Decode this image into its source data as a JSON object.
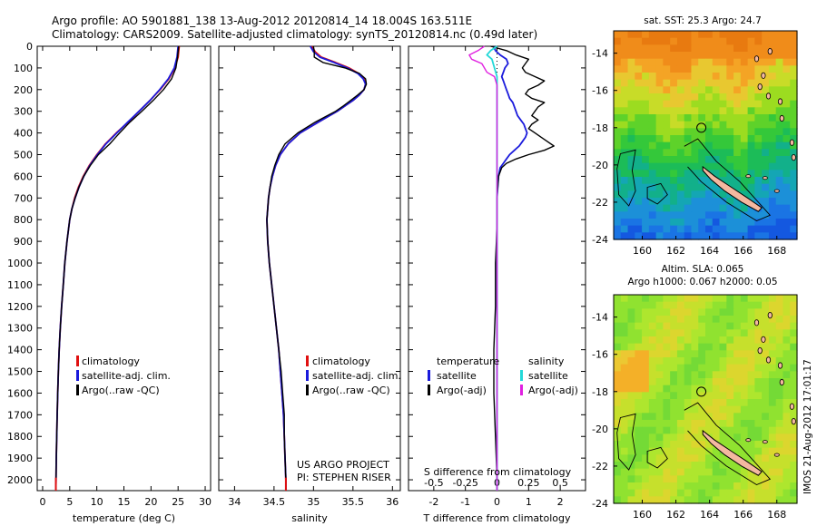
{
  "title": {
    "line1": "Argo profile: AO 5901881_138 13-Aug-2012 20120814_14 18.004S 163.511E",
    "line2": "Climatology: CARS2009. Satellite-adjusted climatology: synTS_20120814.nc (0.49d later)"
  },
  "side_stamp": "IMOS 21-Aug-2012 17:01:17",
  "credit": {
    "line1": "US ARGO PROJECT",
    "line2": "PI: STEPHEN RISER"
  },
  "colors": {
    "climatology": "#e01010",
    "satellite": "#1a1adc",
    "argo": "#000000",
    "cyan": "#22d8d8",
    "magenta": "#e020e0"
  },
  "chart_data": [
    {
      "type": "line",
      "panel": "temperature",
      "xlabel": "temperature (deg C)",
      "ylabel": "",
      "xlim": [
        -1,
        31
      ],
      "ylim": [
        2050,
        0
      ],
      "xticks": [
        0,
        5,
        10,
        15,
        20,
        25,
        30
      ],
      "yticks": [
        0,
        100,
        200,
        300,
        400,
        500,
        600,
        700,
        800,
        900,
        1000,
        1100,
        1200,
        1300,
        1400,
        1500,
        1600,
        1700,
        1800,
        1900,
        2000
      ],
      "y": [
        0,
        50,
        100,
        150,
        200,
        250,
        300,
        350,
        400,
        450,
        500,
        550,
        600,
        650,
        700,
        750,
        800,
        900,
        1000,
        1100,
        1200,
        1300,
        1400,
        1500,
        1600,
        1700,
        1800,
        1900,
        2000,
        2050
      ],
      "legend": [
        "climatology",
        "satellite-adj. clim.",
        "Argo(..raw -QC)"
      ],
      "series": [
        {
          "name": "climatology",
          "values": [
            25.2,
            25.0,
            24.4,
            23.3,
            21.7,
            19.8,
            17.8,
            15.8,
            13.6,
            11.6,
            10.0,
            8.6,
            7.5,
            6.6,
            5.9,
            5.4,
            5.0,
            4.5,
            4.1,
            3.8,
            3.5,
            3.25,
            3.05,
            2.9,
            2.78,
            2.68,
            2.6,
            2.52,
            2.46,
            2.44
          ]
        },
        {
          "name": "satellite-adj. clim.",
          "values": [
            25.0,
            24.8,
            24.3,
            23.2,
            21.6,
            19.8,
            17.8,
            15.7,
            13.7,
            11.7,
            10.1,
            8.7,
            7.6,
            6.7,
            6.0,
            5.4,
            5.0,
            4.5,
            4.1,
            3.8,
            3.5,
            3.25,
            3.05,
            2.9,
            2.78,
            2.68,
            2.6,
            2.52,
            2.46,
            2.44
          ]
        },
        {
          "name": "Argo(..raw -QC)",
          "values": [
            25.1,
            24.9,
            24.6,
            23.8,
            22.3,
            20.4,
            18.3,
            16.1,
            14.2,
            12.4,
            10.3,
            8.8,
            7.6,
            6.7,
            6.0,
            5.4,
            5.0,
            4.5,
            4.1,
            3.8,
            3.5,
            3.25,
            3.05,
            2.9,
            2.78,
            2.68,
            2.6,
            2.52,
            2.46,
            2.44
          ]
        }
      ]
    },
    {
      "type": "line",
      "panel": "salinity",
      "xlabel": "salinity",
      "ylabel": "",
      "xlim": [
        33.8,
        36.1
      ],
      "ylim": [
        2050,
        0
      ],
      "xticks": [
        34,
        34.5,
        35,
        35.5,
        36
      ],
      "y": [
        0,
        25,
        50,
        75,
        100,
        125,
        150,
        175,
        200,
        225,
        250,
        275,
        300,
        350,
        400,
        450,
        500,
        550,
        600,
        650,
        700,
        800,
        900,
        1000,
        1100,
        1200,
        1300,
        1400,
        1500,
        1600,
        1700,
        1800,
        1900,
        2000,
        2050
      ],
      "legend": [
        "climatology",
        "satellite-adj. clim.",
        "Argo(..raw -QC)"
      ],
      "series": [
        {
          "name": "climatology",
          "values": [
            34.98,
            35.02,
            35.1,
            35.28,
            35.45,
            35.57,
            35.64,
            35.66,
            35.64,
            35.58,
            35.5,
            35.4,
            35.3,
            35.06,
            34.83,
            34.68,
            34.58,
            34.52,
            34.48,
            34.45,
            34.43,
            34.41,
            34.42,
            34.44,
            34.47,
            34.5,
            34.53,
            34.56,
            34.58,
            34.6,
            34.62,
            34.63,
            34.64,
            34.65,
            34.65
          ]
        },
        {
          "name": "satellite-adj. clim.",
          "values": [
            34.96,
            35.0,
            35.08,
            35.26,
            35.43,
            35.56,
            35.63,
            35.66,
            35.64,
            35.58,
            35.5,
            35.4,
            35.3,
            35.06,
            34.83,
            34.68,
            34.58,
            34.52,
            34.48,
            34.45,
            34.43,
            34.41,
            34.42,
            34.44,
            34.47,
            34.5,
            34.53,
            34.56,
            34.58,
            34.6,
            34.62,
            34.63,
            34.64,
            34.65,
            34.65
          ]
        },
        {
          "name": "Argo(..raw -QC)",
          "values": [
            35.0,
            35.01,
            35.01,
            35.12,
            35.4,
            35.58,
            35.66,
            35.67,
            35.64,
            35.56,
            35.47,
            35.38,
            35.28,
            35.02,
            34.8,
            34.64,
            34.56,
            34.51,
            34.47,
            34.45,
            34.43,
            34.41,
            34.42,
            34.44,
            34.47,
            34.5,
            34.53,
            34.56,
            34.59,
            34.61,
            34.63,
            34.63,
            34.64,
            34.65,
            34.65
          ]
        }
      ]
    },
    {
      "type": "line",
      "panel": "differences",
      "xlabel": "T difference from climatology",
      "xlabel2": "S difference from climatology",
      "xlim": [
        -2.8,
        2.8
      ],
      "ylim": [
        2050,
        0
      ],
      "xticks": [
        -2,
        -1,
        0,
        1,
        2
      ],
      "xticks_top": [
        -0.5,
        -0.25,
        0,
        0.25,
        0.5
      ],
      "xtick_labels_top": [
        "-0.5",
        "-0.25",
        "0",
        "0.25",
        "0.5"
      ],
      "legend_titles": [
        "temperature",
        "salinity"
      ],
      "legend": [
        "satellite",
        "Argo(-adj)",
        "satellite",
        "Argo(-adj)"
      ],
      "y": [
        0,
        20,
        40,
        60,
        80,
        100,
        120,
        140,
        160,
        180,
        200,
        220,
        240,
        260,
        280,
        300,
        320,
        340,
        360,
        380,
        400,
        420,
        440,
        460,
        480,
        500,
        520,
        540,
        560,
        600,
        700,
        800,
        900,
        1000,
        1200,
        1400,
        1600,
        1800,
        2000,
        2050
      ],
      "series": [
        {
          "name": "satellite",
          "group": "temperature",
          "values": [
            -0.1,
            -0.05,
            0.1,
            0.3,
            0.35,
            0.25,
            0.2,
            0.15,
            0.2,
            0.25,
            0.3,
            0.35,
            0.4,
            0.5,
            0.55,
            0.6,
            0.65,
            0.75,
            0.85,
            0.9,
            0.95,
            0.9,
            0.8,
            0.7,
            0.55,
            0.4,
            0.3,
            0.2,
            0.1,
            0.05,
            0.0,
            0.0,
            0.0,
            0.0,
            0.0,
            0.0,
            0.0,
            0.0,
            0.0,
            0.0
          ]
        },
        {
          "name": "Argo(-adj)",
          "group": "temperature",
          "values": [
            -0.2,
            0.3,
            0.6,
            1.0,
            0.9,
            0.8,
            0.9,
            1.2,
            1.5,
            1.3,
            1.0,
            0.9,
            1.1,
            1.5,
            1.3,
            1.2,
            1.1,
            1.3,
            1.1,
            1.0,
            1.2,
            1.4,
            1.6,
            1.8,
            1.5,
            1.0,
            0.6,
            0.3,
            0.15,
            0.05,
            0.0,
            0.0,
            -0.02,
            -0.05,
            -0.05,
            -0.1,
            -0.1,
            -0.05,
            0.0,
            0.0
          ]
        },
        {
          "name": "satellite",
          "group": "salinity",
          "values": [
            0.0,
            -0.05,
            -0.08,
            -0.04,
            -0.03,
            -0.02,
            -0.01,
            0.0,
            0.0,
            0.0,
            0.0,
            0.0,
            0.0,
            0.0,
            0.0,
            0.0,
            0.0,
            0.0,
            0.0,
            0.0,
            0.0,
            0.0,
            0.0,
            0.0,
            0.0,
            0.0,
            0.0,
            0.0,
            0.0,
            0.0,
            0.0,
            0.0,
            0.0,
            0.0,
            0.0,
            0.0,
            0.0,
            0.0,
            0.0,
            0.0
          ]
        },
        {
          "name": "Argo(-adj)",
          "group": "salinity",
          "values": [
            -0.1,
            -0.15,
            -0.22,
            -0.2,
            -0.12,
            -0.1,
            -0.08,
            -0.02,
            -0.01,
            0.0,
            0.0,
            0.0,
            0.0,
            0.0,
            0.0,
            0.0,
            0.0,
            0.0,
            0.0,
            0.0,
            0.0,
            0.0,
            0.0,
            0.0,
            0.0,
            0.0,
            0.0,
            0.0,
            0.0,
            0.0,
            0.0,
            0.0,
            0.0,
            0.0,
            0.0,
            0.0,
            0.0,
            0.0,
            0.0,
            0.0
          ]
        }
      ]
    },
    {
      "type": "heatmap",
      "panel": "sst_map",
      "title": "sat. SST: 25.3  Argo: 24.7",
      "xlim": [
        158.3,
        169.2
      ],
      "ylim": [
        -24,
        -12.8
      ],
      "xticks": [
        160,
        162,
        164,
        166,
        168
      ],
      "yticks": [
        -14,
        -16,
        -18,
        -20,
        -22,
        -24
      ]
    },
    {
      "type": "heatmap",
      "panel": "sla_map",
      "title_line1": "Altim. SLA: 0.065",
      "title_line2": "Argo h1000: 0.067 h2000: 0.05",
      "xlim": [
        158.3,
        169.2
      ],
      "ylim": [
        -24,
        -12.8
      ],
      "xticks": [
        160,
        162,
        164,
        166,
        168
      ],
      "yticks": [
        -14,
        -16,
        -18,
        -20,
        -22,
        -24
      ]
    }
  ]
}
